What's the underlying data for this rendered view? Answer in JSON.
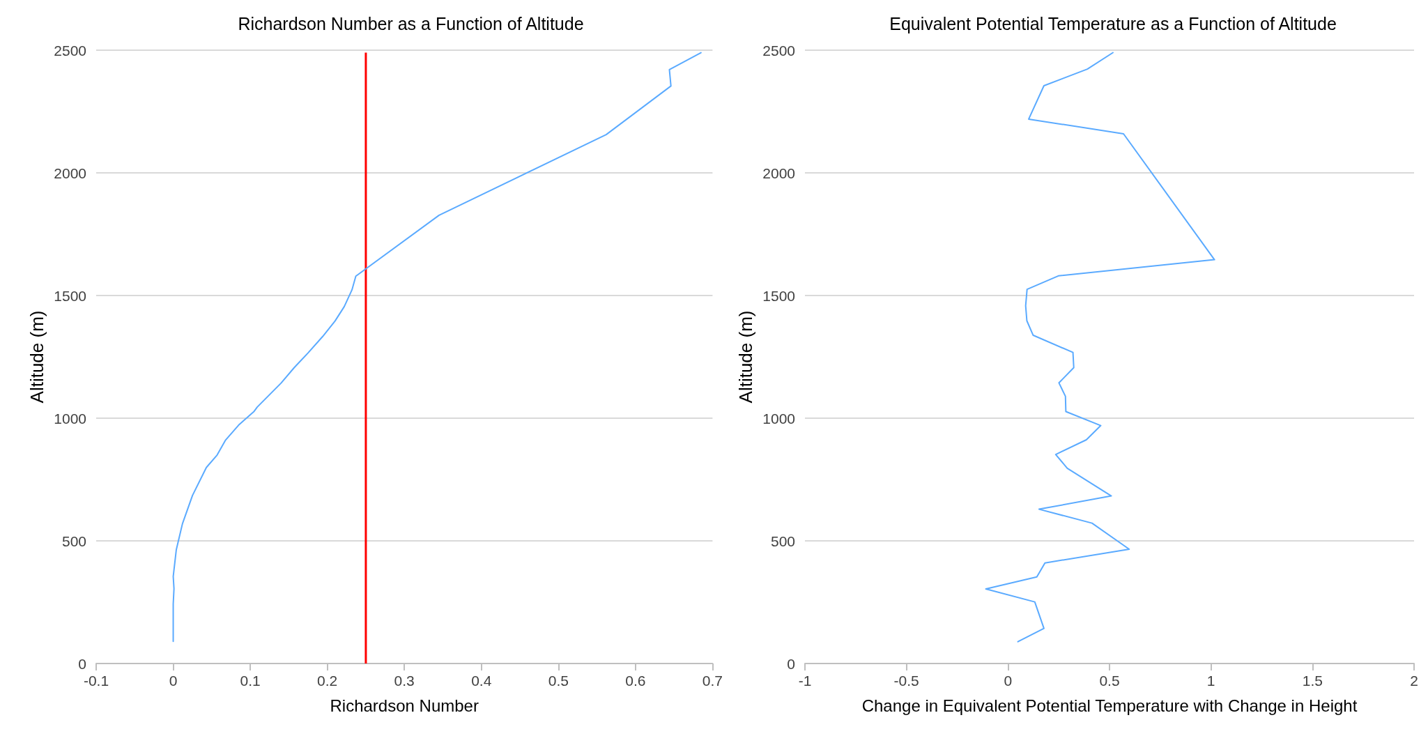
{
  "chart_data": [
    {
      "type": "line",
      "title": "Richardson Number as a Function of Altitude",
      "xlabel": "Richardson Number",
      "ylabel": "Altitude (m)",
      "series": [
        {
          "color": "#5aaaff",
          "x": [
            0.685,
            0.644,
            0.646,
            0.562,
            0.345,
            0.237,
            0.232,
            0.222,
            0.21,
            0.194,
            0.175,
            0.157,
            0.14,
            0.109,
            0.105,
            0.085,
            0.068,
            0.057,
            0.043,
            0.025,
            0.012,
            0.004,
            0,
            0.001,
            0,
            0
          ],
          "values": [
            2490,
            2421,
            2354,
            2156,
            1827,
            1579,
            1523,
            1455,
            1396,
            1333,
            1266,
            1206,
            1143,
            1045,
            1028,
            972,
            911,
            850,
            799,
            685,
            570,
            464,
            355,
            305,
            243,
            90
          ]
        }
      ],
      "xlim": [
        -0.1,
        0.7
      ],
      "xticks": [
        -0.1,
        0,
        0.1,
        0.2,
        0.3,
        0.4,
        0.5,
        0.6,
        0.7
      ],
      "ylim": [
        0,
        2500
      ],
      "yticks": [
        0,
        500,
        1000,
        1500,
        2000,
        2500
      ],
      "grid": "y",
      "marker": "none",
      "ref_lines": [
        {
          "axis": "x",
          "value": 0.25,
          "color": "#ff0000"
        }
      ]
    },
    {
      "type": "line",
      "title": "Equivalent Potential Temperature as a Function of Altitude",
      "xlabel": "Change in Equivalent Potential Temperature with Change in Height",
      "ylabel": "Altitude (m)",
      "series": [
        {
          "color": "#5aaaff",
          "x": [
            0.517,
            0.391,
            0.177,
            0.102,
            0.569,
            1.017,
            0.248,
            0.094,
            0.087,
            0.093,
            0.124,
            0.32,
            0.324,
            0.251,
            0.283,
            0.285,
            0.457,
            0.386,
            0.235,
            0.292,
            0.509,
            0.153,
            0.414,
            0.597,
            0.182,
            0.142,
            -0.109,
            0.132,
            0.177,
            0.049
          ],
          "values": [
            2490,
            2423,
            2355,
            2219,
            2159,
            1646,
            1580,
            1525,
            1458,
            1397,
            1338,
            1268,
            1206,
            1144,
            1089,
            1027,
            970,
            912,
            852,
            796,
            683,
            629,
            572,
            466,
            410,
            353,
            304,
            251,
            143,
            89
          ]
        }
      ],
      "xlim": [
        -1,
        2
      ],
      "xticks": [
        -1,
        -0.5,
        0,
        0.5,
        1,
        1.5,
        2
      ],
      "ylim": [
        0,
        2500
      ],
      "yticks": [
        0,
        500,
        1000,
        1500,
        2000,
        2500
      ],
      "grid": "y",
      "marker": "none"
    }
  ]
}
